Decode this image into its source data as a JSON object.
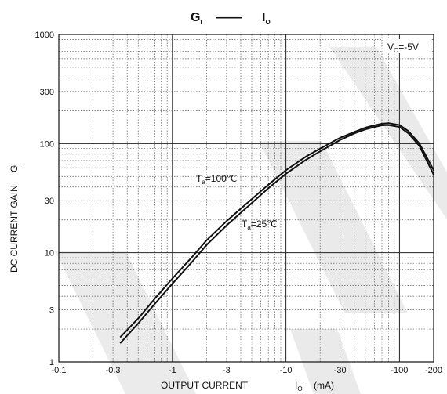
{
  "chart_data": {
    "type": "line",
    "title": {
      "main": "G",
      "main_sub": "I",
      "dash": "——",
      "right": "I",
      "right_sub": "O"
    },
    "xlabel": {
      "text": "OUTPUT CURRENT",
      "symbol": "I",
      "symbol_sub": "O",
      "unit": "(mA)"
    },
    "ylabel": {
      "text": "DC CURRENT GAIN",
      "symbol": "G",
      "symbol_sub": "I"
    },
    "x_scale": "log",
    "y_scale": "log",
    "xlim": [
      -0.1,
      -200
    ],
    "ylim": [
      1,
      1000
    ],
    "x_ticks": [
      {
        "value": -0.1,
        "label": "-0.1"
      },
      {
        "value": -0.3,
        "label": "-0.3"
      },
      {
        "value": -1,
        "label": "-1"
      },
      {
        "value": -3,
        "label": "-3"
      },
      {
        "value": -10,
        "label": "-10"
      },
      {
        "value": -30,
        "label": "-30"
      },
      {
        "value": -100,
        "label": "-100"
      },
      {
        "value": -200,
        "label": "-200"
      }
    ],
    "y_ticks": [
      {
        "value": 1,
        "label": "1"
      },
      {
        "value": 3,
        "label": "3"
      },
      {
        "value": 10,
        "label": "10"
      },
      {
        "value": 30,
        "label": "30"
      },
      {
        "value": 100,
        "label": "100"
      },
      {
        "value": 300,
        "label": "300"
      },
      {
        "value": 1000,
        "label": "1000"
      }
    ],
    "grid": true,
    "series": [
      {
        "x": [
          -0.35,
          -0.5,
          -0.7,
          -1,
          -1.5,
          -2,
          -3,
          -5,
          -7,
          -10,
          -15,
          -20,
          -30,
          -40,
          -50,
          -60,
          -70,
          -80,
          -100,
          -120,
          -150,
          -200
        ],
        "y": [
          1.7,
          2.5,
          3.8,
          5.8,
          9.2,
          13,
          19.5,
          31,
          42,
          57,
          76,
          90,
          113,
          128,
          140,
          147,
          152,
          154,
          148,
          130,
          100,
          57
        ]
      },
      {
        "x": [
          -0.35,
          -0.5,
          -0.7,
          -1,
          -1.5,
          -2,
          -3,
          -5,
          -7,
          -10,
          -15,
          -20,
          -30,
          -40,
          -50,
          -60,
          -70,
          -80,
          -100,
          -120,
          -150,
          -200
        ],
        "y": [
          1.5,
          2.25,
          3.4,
          5.2,
          8.3,
          11.8,
          17.8,
          28.5,
          39,
          53,
          71,
          85,
          108,
          124,
          135,
          142,
          147,
          148,
          142,
          124,
          95,
          52
        ]
      }
    ],
    "annotations": [
      {
        "id": "vo",
        "symbol": "V",
        "sub": "O",
        "value": "=-5V"
      },
      {
        "id": "ta100",
        "symbol": "T",
        "sub": "a",
        "value": "=100℃"
      },
      {
        "id": "ta25",
        "symbol": "T",
        "sub": "a",
        "value": "=25℃"
      }
    ]
  }
}
